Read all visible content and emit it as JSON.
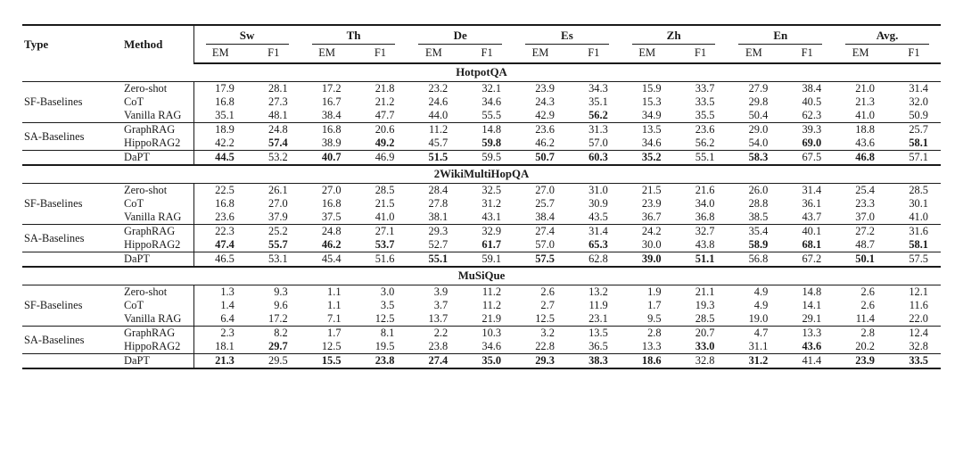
{
  "colors": {
    "text": "#1a1a1a",
    "rule": "#1a1a1a",
    "background": "#ffffff"
  },
  "table": {
    "header": {
      "type_label": "Type",
      "method_label": "Method",
      "language_groups": [
        "Sw",
        "Th",
        "De",
        "Es",
        "Zh",
        "En",
        "Avg."
      ],
      "metric_labels": [
        "EM",
        "F1"
      ]
    },
    "sections": [
      {
        "title": "HotpotQA",
        "row_groups": [
          {
            "type_label": "SF-Baselines",
            "rows": [
              {
                "method": "Zero-shot",
                "values": [
                  "17.9",
                  "28.1",
                  "17.2",
                  "21.8",
                  "23.2",
                  "32.1",
                  "23.9",
                  "34.3",
                  "15.9",
                  "33.7",
                  "27.9",
                  "38.4",
                  "21.0",
                  "31.4"
                ],
                "bold": []
              },
              {
                "method": "CoT",
                "values": [
                  "16.8",
                  "27.3",
                  "16.7",
                  "21.2",
                  "24.6",
                  "34.6",
                  "24.3",
                  "35.1",
                  "15.3",
                  "33.5",
                  "29.8",
                  "40.5",
                  "21.3",
                  "32.0"
                ],
                "bold": []
              },
              {
                "method": "Vanilla RAG",
                "values": [
                  "35.1",
                  "48.1",
                  "38.4",
                  "47.7",
                  "44.0",
                  "55.5",
                  "42.9",
                  "56.2",
                  "34.9",
                  "35.5",
                  "50.4",
                  "62.3",
                  "41.0",
                  "50.9"
                ],
                "bold": [
                  7
                ]
              }
            ]
          },
          {
            "type_label": "SA-Baselines",
            "rows": [
              {
                "method": "GraphRAG",
                "values": [
                  "18.9",
                  "24.8",
                  "16.8",
                  "20.6",
                  "11.2",
                  "14.8",
                  "23.6",
                  "31.3",
                  "13.5",
                  "23.6",
                  "29.0",
                  "39.3",
                  "18.8",
                  "25.7"
                ],
                "bold": []
              },
              {
                "method": "HippoRAG2",
                "values": [
                  "42.2",
                  "57.4",
                  "38.9",
                  "49.2",
                  "45.7",
                  "59.8",
                  "46.2",
                  "57.0",
                  "34.6",
                  "56.2",
                  "54.0",
                  "69.0",
                  "43.6",
                  "58.1"
                ],
                "bold": [
                  1,
                  3,
                  5,
                  11,
                  13
                ]
              }
            ]
          },
          {
            "type_label": "",
            "rows": [
              {
                "method": "DaPT",
                "values": [
                  "44.5",
                  "53.2",
                  "40.7",
                  "46.9",
                  "51.5",
                  "59.5",
                  "50.7",
                  "60.3",
                  "35.2",
                  "55.1",
                  "58.3",
                  "67.5",
                  "46.8",
                  "57.1"
                ],
                "bold": [
                  0,
                  2,
                  4,
                  6,
                  7,
                  8,
                  10,
                  12
                ]
              }
            ]
          }
        ]
      },
      {
        "title": "2WikiMultiHopQA",
        "row_groups": [
          {
            "type_label": "SF-Baselines",
            "rows": [
              {
                "method": "Zero-shot",
                "values": [
                  "22.5",
                  "26.1",
                  "27.0",
                  "28.5",
                  "28.4",
                  "32.5",
                  "27.0",
                  "31.0",
                  "21.5",
                  "21.6",
                  "26.0",
                  "31.4",
                  "25.4",
                  "28.5"
                ],
                "bold": []
              },
              {
                "method": "CoT",
                "values": [
                  "16.8",
                  "27.0",
                  "16.8",
                  "21.5",
                  "27.8",
                  "31.2",
                  "25.7",
                  "30.9",
                  "23.9",
                  "34.0",
                  "28.8",
                  "36.1",
                  "23.3",
                  "30.1"
                ],
                "bold": []
              },
              {
                "method": "Vanilla RAG",
                "values": [
                  "23.6",
                  "37.9",
                  "37.5",
                  "41.0",
                  "38.1",
                  "43.1",
                  "38.4",
                  "43.5",
                  "36.7",
                  "36.8",
                  "38.5",
                  "43.7",
                  "37.0",
                  "41.0"
                ],
                "bold": []
              }
            ]
          },
          {
            "type_label": "SA-Baselines",
            "rows": [
              {
                "method": "GraphRAG",
                "values": [
                  "22.3",
                  "25.2",
                  "24.8",
                  "27.1",
                  "29.3",
                  "32.9",
                  "27.4",
                  "31.4",
                  "24.2",
                  "32.7",
                  "35.4",
                  "40.1",
                  "27.2",
                  "31.6"
                ],
                "bold": []
              },
              {
                "method": "HippoRAG2",
                "values": [
                  "47.4",
                  "55.7",
                  "46.2",
                  "53.7",
                  "52.7",
                  "61.7",
                  "57.0",
                  "65.3",
                  "30.0",
                  "43.8",
                  "58.9",
                  "68.1",
                  "48.7",
                  "58.1"
                ],
                "bold": [
                  0,
                  1,
                  2,
                  3,
                  5,
                  7,
                  10,
                  11,
                  13
                ]
              }
            ]
          },
          {
            "type_label": "",
            "rows": [
              {
                "method": "DaPT",
                "values": [
                  "46.5",
                  "53.1",
                  "45.4",
                  "51.6",
                  "55.1",
                  "59.1",
                  "57.5",
                  "62.8",
                  "39.0",
                  "51.1",
                  "56.8",
                  "67.2",
                  "50.1",
                  "57.5"
                ],
                "bold": [
                  4,
                  6,
                  8,
                  9,
                  12
                ]
              }
            ]
          }
        ]
      },
      {
        "title": "MuSiQue",
        "row_groups": [
          {
            "type_label": "SF-Baselines",
            "rows": [
              {
                "method": "Zero-shot",
                "values": [
                  "1.3",
                  "9.3",
                  "1.1",
                  "3.0",
                  "3.9",
                  "11.2",
                  "2.6",
                  "13.2",
                  "1.9",
                  "21.1",
                  "4.9",
                  "14.8",
                  "2.6",
                  "12.1"
                ],
                "bold": []
              },
              {
                "method": "CoT",
                "values": [
                  "1.4",
                  "9.6",
                  "1.1",
                  "3.5",
                  "3.7",
                  "11.2",
                  "2.7",
                  "11.9",
                  "1.7",
                  "19.3",
                  "4.9",
                  "14.1",
                  "2.6",
                  "11.6"
                ],
                "bold": []
              },
              {
                "method": "Vanilla RAG",
                "values": [
                  "6.4",
                  "17.2",
                  "7.1",
                  "12.5",
                  "13.7",
                  "21.9",
                  "12.5",
                  "23.1",
                  "9.5",
                  "28.5",
                  "19.0",
                  "29.1",
                  "11.4",
                  "22.0"
                ],
                "bold": []
              }
            ]
          },
          {
            "type_label": "SA-Baselines",
            "rows": [
              {
                "method": "GraphRAG",
                "values": [
                  "2.3",
                  "8.2",
                  "1.7",
                  "8.1",
                  "2.2",
                  "10.3",
                  "3.2",
                  "13.5",
                  "2.8",
                  "20.7",
                  "4.7",
                  "13.3",
                  "2.8",
                  "12.4"
                ],
                "bold": []
              },
              {
                "method": "HippoRAG2",
                "values": [
                  "18.1",
                  "29.7",
                  "12.5",
                  "19.5",
                  "23.8",
                  "34.6",
                  "22.8",
                  "36.5",
                  "13.3",
                  "33.0",
                  "31.1",
                  "43.6",
                  "20.2",
                  "32.8"
                ],
                "bold": [
                  1,
                  9,
                  11
                ]
              }
            ]
          },
          {
            "type_label": "",
            "rows": [
              {
                "method": "DaPT",
                "values": [
                  "21.3",
                  "29.5",
                  "15.5",
                  "23.8",
                  "27.4",
                  "35.0",
                  "29.3",
                  "38.3",
                  "18.6",
                  "32.8",
                  "31.2",
                  "41.4",
                  "23.9",
                  "33.5"
                ],
                "bold": [
                  0,
                  2,
                  3,
                  4,
                  5,
                  6,
                  7,
                  8,
                  10,
                  12,
                  13
                ]
              }
            ]
          }
        ]
      }
    ]
  }
}
